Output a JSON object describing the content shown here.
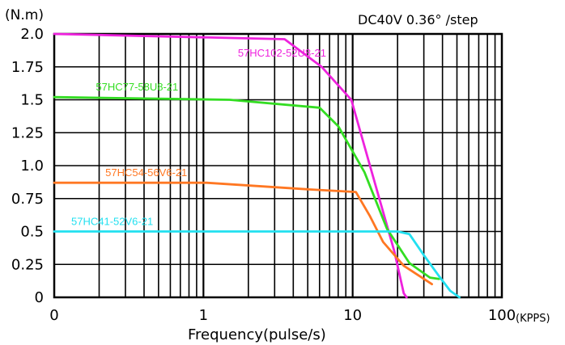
{
  "chart_data": {
    "type": "line",
    "x_scale": "log",
    "xlabel": "Frequency(pulse/s)",
    "x_unit_label": "(KPPS)",
    "ylabel": "(N.m)",
    "annotation": "DC40V 0.36°  /step",
    "grid": true,
    "x_tick_labels": [
      "0",
      "1",
      "10",
      "100"
    ],
    "y_tick_labels": [
      "0",
      "0.25",
      "0.5",
      "0.75",
      "1.0",
      "1.25",
      "1.5",
      "1.75",
      "2.0"
    ],
    "ylim": [
      0,
      2.0
    ],
    "series": [
      {
        "name": "57HC102-52U8-21",
        "color": "#ee22dd",
        "points": [
          [
            0.1,
            2.0
          ],
          [
            3.5,
            1.96
          ],
          [
            6.2,
            1.75
          ],
          [
            9.8,
            1.5
          ],
          [
            14,
            0.88
          ],
          [
            19,
            0.35
          ],
          [
            22,
            0.03
          ],
          [
            23,
            0.0
          ]
        ]
      },
      {
        "name": "57HC77-58U8-21",
        "color": "#33dd22",
        "points": [
          [
            0.1,
            1.52
          ],
          [
            1.5,
            1.5
          ],
          [
            6,
            1.44
          ],
          [
            8,
            1.3
          ],
          [
            12,
            0.95
          ],
          [
            17,
            0.52
          ],
          [
            24,
            0.26
          ],
          [
            33,
            0.15
          ],
          [
            38,
            0.14
          ]
        ]
      },
      {
        "name": "57HC54-56V6-21",
        "color": "#ff7722",
        "points": [
          [
            0.1,
            0.87
          ],
          [
            1.05,
            0.87
          ],
          [
            5,
            0.82
          ],
          [
            10.5,
            0.8
          ],
          [
            13,
            0.62
          ],
          [
            16,
            0.42
          ],
          [
            22,
            0.24
          ],
          [
            34,
            0.1
          ]
        ]
      },
      {
        "name": "57HC41-52V6-21",
        "color": "#22e0f0",
        "points": [
          [
            0.1,
            0.5
          ],
          [
            20,
            0.5
          ],
          [
            24,
            0.48
          ],
          [
            30,
            0.32
          ],
          [
            38,
            0.16
          ],
          [
            45,
            0.05
          ],
          [
            52,
            0.0
          ]
        ]
      }
    ]
  }
}
